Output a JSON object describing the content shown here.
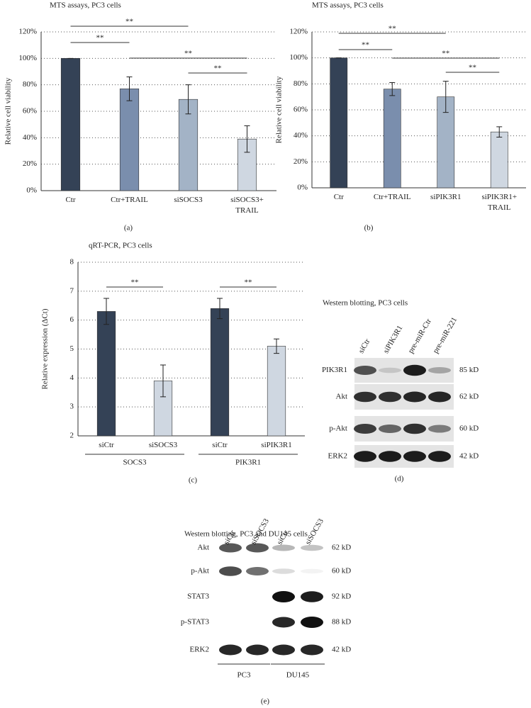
{
  "chart_data": [
    {
      "type": "bar",
      "title": "MTS assays, PC3 cells",
      "y_label": "Relative cell viability",
      "panel_label": "(a)",
      "categories": [
        "Ctr",
        "Ctr+TRAIL",
        "siSOCS3",
        "siSOCS3+ TRAIL"
      ],
      "values": [
        100,
        77,
        69,
        39
      ],
      "errors": [
        0,
        9,
        11,
        10
      ],
      "colors": [
        "#344256",
        "#7a8ead",
        "#a3b3c6",
        "#cfd7e1"
      ],
      "ylim": [
        0,
        120
      ],
      "yticks": [
        {
          "value": 0,
          "label": "0%"
        },
        {
          "value": 20,
          "label": "20%"
        },
        {
          "value": 40,
          "label": "40%"
        },
        {
          "value": 60,
          "label": "60%"
        },
        {
          "value": 80,
          "label": "80%"
        },
        {
          "value": 100,
          "label": "100%"
        },
        {
          "value": 120,
          "label": "120%"
        }
      ],
      "grid": true,
      "comparisons": [
        {
          "from": 0,
          "to": 2,
          "label": "**"
        },
        {
          "from": 0,
          "to": 1,
          "label": "**"
        },
        {
          "from": 1,
          "to": 3,
          "label": "**"
        },
        {
          "from": 2,
          "to": 3,
          "label": "**"
        }
      ]
    },
    {
      "type": "bar",
      "title": "MTS assays, PC3 cells",
      "y_label": "Relative cell viability",
      "panel_label": "(b)",
      "categories": [
        "Ctr",
        "Ctr+TRAIL",
        "siPIK3R1",
        "siPIK3R1+ TRAIL"
      ],
      "values": [
        100,
        76,
        70,
        43
      ],
      "errors": [
        0,
        5,
        12,
        4
      ],
      "colors": [
        "#344256",
        "#7a8ead",
        "#a3b3c6",
        "#cfd7e1"
      ],
      "ylim": [
        0,
        120
      ],
      "yticks": [
        {
          "value": 0,
          "label": "0%"
        },
        {
          "value": 20,
          "label": "20%"
        },
        {
          "value": 40,
          "label": "40%"
        },
        {
          "value": 60,
          "label": "60%"
        },
        {
          "value": 80,
          "label": "80%"
        },
        {
          "value": 100,
          "label": "100%"
        },
        {
          "value": 120,
          "label": "120%"
        }
      ],
      "grid": true,
      "comparisons": [
        {
          "from": 0,
          "to": 2,
          "label": "**"
        },
        {
          "from": 0,
          "to": 1,
          "label": "**"
        },
        {
          "from": 1,
          "to": 3,
          "label": "**"
        },
        {
          "from": 2,
          "to": 3,
          "label": "**"
        }
      ]
    },
    {
      "type": "bar",
      "title": "qRT-PCR, PC3 cells",
      "y_label": "Relative expression (ΔCt)",
      "panel_label": "(c)",
      "categories": [
        "siCtr",
        "siSOCS3",
        "siCtr",
        "siPIK3R1"
      ],
      "values": [
        6.3,
        3.9,
        6.4,
        5.1
      ],
      "errors": [
        0.45,
        0.55,
        0.35,
        0.25
      ],
      "colors": [
        "#344256",
        "#cfd7e1",
        "#344256",
        "#cfd7e1"
      ],
      "ylim": [
        2,
        8
      ],
      "yticks": [
        2,
        3,
        4,
        5,
        6,
        7,
        8
      ],
      "grid": true,
      "comparisons": [
        {
          "from": 0,
          "to": 1,
          "label": "**"
        },
        {
          "from": 2,
          "to": 3,
          "label": "**"
        }
      ],
      "groups": [
        {
          "label": "SOCS3",
          "from": 0,
          "to": 1
        },
        {
          "label": "PIK3R1",
          "from": 2,
          "to": 3
        }
      ]
    }
  ],
  "blots": [
    {
      "title": "Western blotting, PC3 cells",
      "panel_label": "(d)",
      "lanes": [
        "siCtr",
        "siPIK3R1",
        "pre-miR-Ctr",
        "pre-miR-221"
      ],
      "rows": [
        {
          "protein": "PIK3R1",
          "size": "85 kD"
        },
        {
          "protein": "Akt",
          "size": "62 kD"
        },
        {
          "protein": "p-Akt",
          "size": "60 kD"
        },
        {
          "protein": "ERK2",
          "size": "42 kD"
        }
      ]
    },
    {
      "title": "Western blotting, PC3 and DU145 cells",
      "panel_label": "(e)",
      "lanes": [
        "siCtr",
        "siSOCS3",
        "siCtr",
        "siSOCS3"
      ],
      "rows": [
        {
          "protein": "Akt",
          "size": "62 kD"
        },
        {
          "protein": "p-Akt",
          "size": "60 kD"
        },
        {
          "protein": "STAT3",
          "size": "92 kD"
        },
        {
          "protein": "p-STAT3",
          "size": "88 kD"
        },
        {
          "protein": "ERK2",
          "size": "42 kD"
        }
      ],
      "groups": [
        {
          "label": "PC3",
          "from": 0,
          "to": 1
        },
        {
          "label": "DU145",
          "from": 2,
          "to": 3
        }
      ]
    }
  ]
}
